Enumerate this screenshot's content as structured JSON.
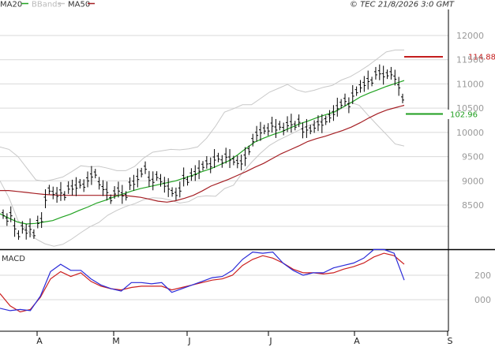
{
  "legend": [
    {
      "label": "MA20",
      "color": "#22a322"
    },
    {
      "label": "BBands",
      "color": "#c8c8c8"
    },
    {
      "label": "MA50",
      "color": "#a51f24"
    }
  ],
  "copyright": "© TEC 21/8/2026 3:0 GMT",
  "macd_label": "MACD",
  "chart_data": {
    "type": "line",
    "price_axis": {
      "ticks": [
        "12000",
        "11500",
        "11000",
        "10500",
        "10000",
        "9500",
        "9000",
        "8500"
      ],
      "values": [
        12000,
        11500,
        11000,
        10500,
        10000,
        9500,
        9000,
        8500
      ]
    },
    "macd_axis": {
      "ticks": [
        "200",
        "000"
      ],
      "values": [
        200,
        0
      ]
    },
    "months": [
      "A",
      "M",
      "J",
      "J",
      "A",
      "S"
    ],
    "markers": [
      {
        "label": "114.88",
        "color": "#c41d1d",
        "value": 11488
      },
      {
        "label": "102.96",
        "color": "#1f9e1f",
        "value": 10296
      }
    ],
    "price_bars": [
      8310,
      8200,
      8310,
      8040,
      7880,
      8040,
      7950,
      8030,
      7900,
      8150,
      8190,
      8630,
      8820,
      8750,
      8710,
      8780,
      8690,
      8860,
      8860,
      8880,
      8940,
      8900,
      9030,
      9110,
      9150,
      8950,
      8850,
      8790,
      8620,
      8760,
      8820,
      8720,
      8690,
      8940,
      8960,
      9060,
      9170,
      9270,
      9040,
      9000,
      9100,
      9010,
      8920,
      8860,
      8770,
      8730,
      8820,
      9080,
      9000,
      9130,
      9160,
      9230,
      9310,
      9380,
      9320,
      9460,
      9480,
      9400,
      9520,
      9460,
      9420,
      9390,
      9380,
      9500,
      9630,
      9840,
      9970,
      10020,
      10060,
      10060,
      10160,
      10080,
      10140,
      10070,
      10170,
      10190,
      10140,
      10240,
      10040,
      10080,
      10060,
      10120,
      10190,
      10180,
      10250,
      10330,
      10400,
      10520,
      10590,
      10670,
      10560,
      10780,
      10850,
      10950,
      11000,
      11080,
      11050,
      11220,
      11240,
      11180,
      11200,
      11220,
      11130,
      10950,
      10700
    ],
    "ma20": [
      8320,
      8230,
      8150,
      8110,
      8120,
      8150,
      8180,
      8250,
      8310,
      8390,
      8460,
      8540,
      8600,
      8670,
      8730,
      8790,
      8840,
      8880,
      8920,
      8960,
      9000,
      9060,
      9120,
      9190,
      9250,
      9330,
      9410,
      9530,
      9670,
      9800,
      9880,
      9950,
      10010,
      10090,
      10170,
      10230,
      10300,
      10360,
      10420,
      10520,
      10620,
      10730,
      10810,
      10880,
      10950,
      11010,
      11070
    ],
    "ma50": [
      8800,
      8800,
      8780,
      8760,
      8740,
      8720,
      8710,
      8700,
      8700,
      8700,
      8700,
      8700,
      8700,
      8700,
      8700,
      8680,
      8660,
      8620,
      8580,
      8560,
      8590,
      8640,
      8700,
      8790,
      8890,
      8960,
      9030,
      9110,
      9190,
      9280,
      9360,
      9460,
      9560,
      9640,
      9720,
      9810,
      9870,
      9920,
      9980,
      10040,
      10110,
      10200,
      10300,
      10390,
      10460,
      10510,
      10560
    ],
    "bb_upper": [
      9700,
      9650,
      9500,
      9260,
      9020,
      8990,
      9030,
      9080,
      9190,
      9310,
      9290,
      9300,
      9260,
      9210,
      9210,
      9300,
      9470,
      9590,
      9620,
      9650,
      9640,
      9660,
      9700,
      9880,
      10130,
      10420,
      10490,
      10570,
      10570,
      10700,
      10830,
      10910,
      10990,
      10880,
      10830,
      10870,
      10930,
      10970,
      11080,
      11150,
      11260,
      11380,
      11520,
      11660,
      11700,
      11700
    ],
    "bb_lower": [
      9000,
      8650,
      8180,
      7980,
      7800,
      7700,
      7650,
      7690,
      7800,
      7930,
      8050,
      8140,
      8290,
      8390,
      8470,
      8530,
      8610,
      8650,
      8640,
      8600,
      8540,
      8570,
      8670,
      8690,
      8680,
      8840,
      8910,
      9170,
      9380,
      9570,
      9730,
      9840,
      9930,
      10020,
      10110,
      10190,
      10260,
      10380,
      10490,
      10620,
      10560,
      10350,
      10150,
      9960,
      9760,
      9720
    ],
    "macd_line": [
      -70,
      -90,
      -80,
      -90,
      30,
      230,
      290,
      240,
      240,
      170,
      120,
      90,
      70,
      140,
      140,
      130,
      140,
      60,
      90,
      120,
      150,
      180,
      190,
      240,
      330,
      390,
      380,
      390,
      300,
      240,
      200,
      220,
      220,
      260,
      280,
      300,
      340,
      410,
      410,
      380,
      160
    ],
    "macd_signal": [
      50,
      -50,
      -100,
      -80,
      20,
      170,
      230,
      190,
      220,
      150,
      110,
      90,
      80,
      100,
      110,
      110,
      110,
      80,
      100,
      120,
      140,
      160,
      170,
      200,
      280,
      330,
      360,
      340,
      300,
      250,
      220,
      220,
      210,
      220,
      250,
      270,
      300,
      350,
      380,
      360,
      290
    ]
  }
}
